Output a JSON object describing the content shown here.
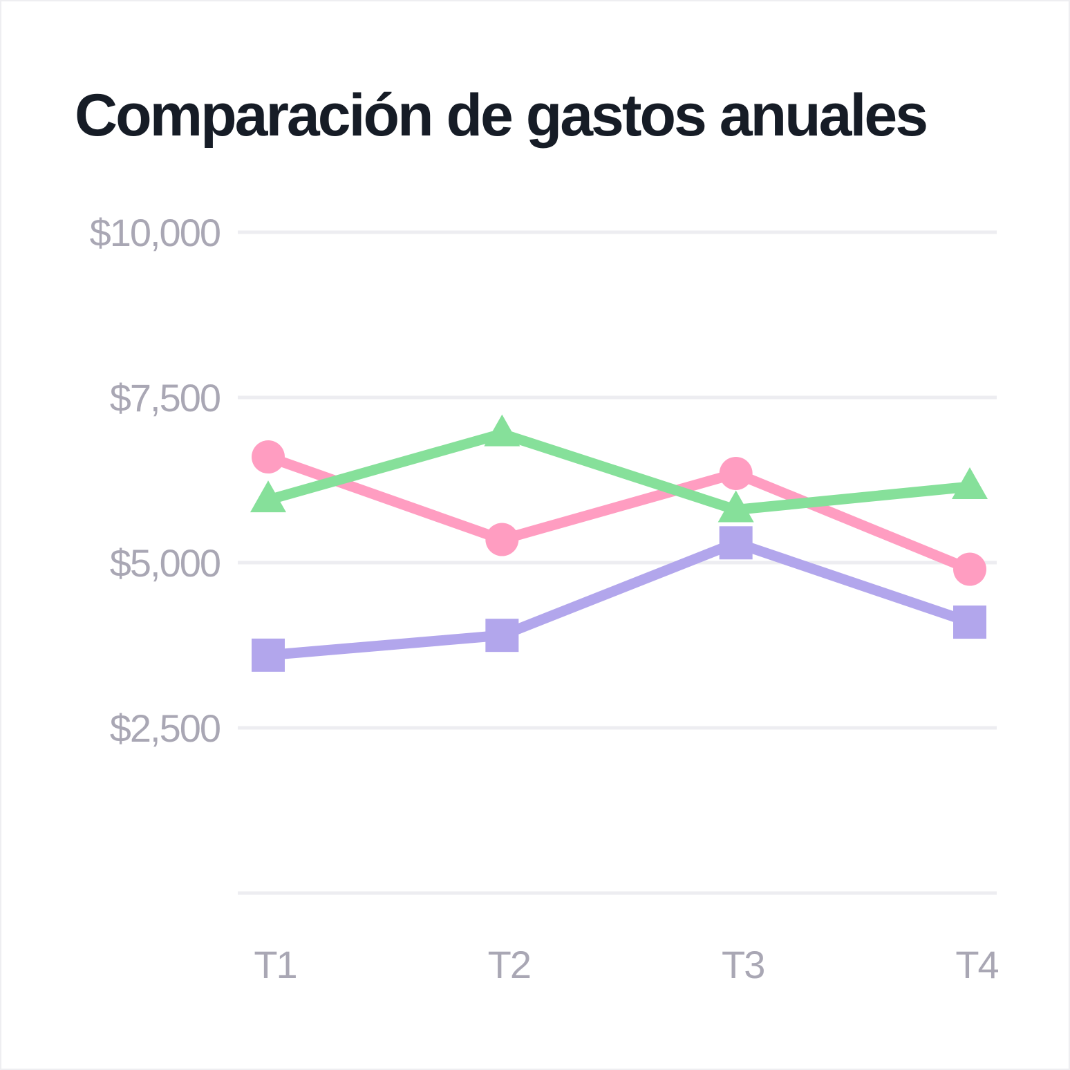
{
  "chart_data": {
    "type": "line",
    "title": "Comparación de gastos anuales",
    "xlabel": "",
    "ylabel": "",
    "categories": [
      "T1",
      "T2",
      "T3",
      "T4"
    ],
    "ylim": [
      0,
      10000
    ],
    "yticks": [
      0,
      2500,
      5000,
      7500,
      10000
    ],
    "ytick_labels": [
      "",
      "$2,500",
      "$5,000",
      "$7,500",
      "$10,000"
    ],
    "grid": true,
    "legend": "none",
    "series": [
      {
        "values": [
          6600,
          5350,
          6350,
          4900
        ],
        "color": "#ff9dc1",
        "marker": "circle"
      },
      {
        "values": [
          5950,
          6950,
          5800,
          6150
        ],
        "color": "#86e09a",
        "marker": "triangle"
      },
      {
        "values": [
          3600,
          3900,
          5300,
          4100
        ],
        "color": "#b2a6ec",
        "marker": "square"
      }
    ]
  }
}
